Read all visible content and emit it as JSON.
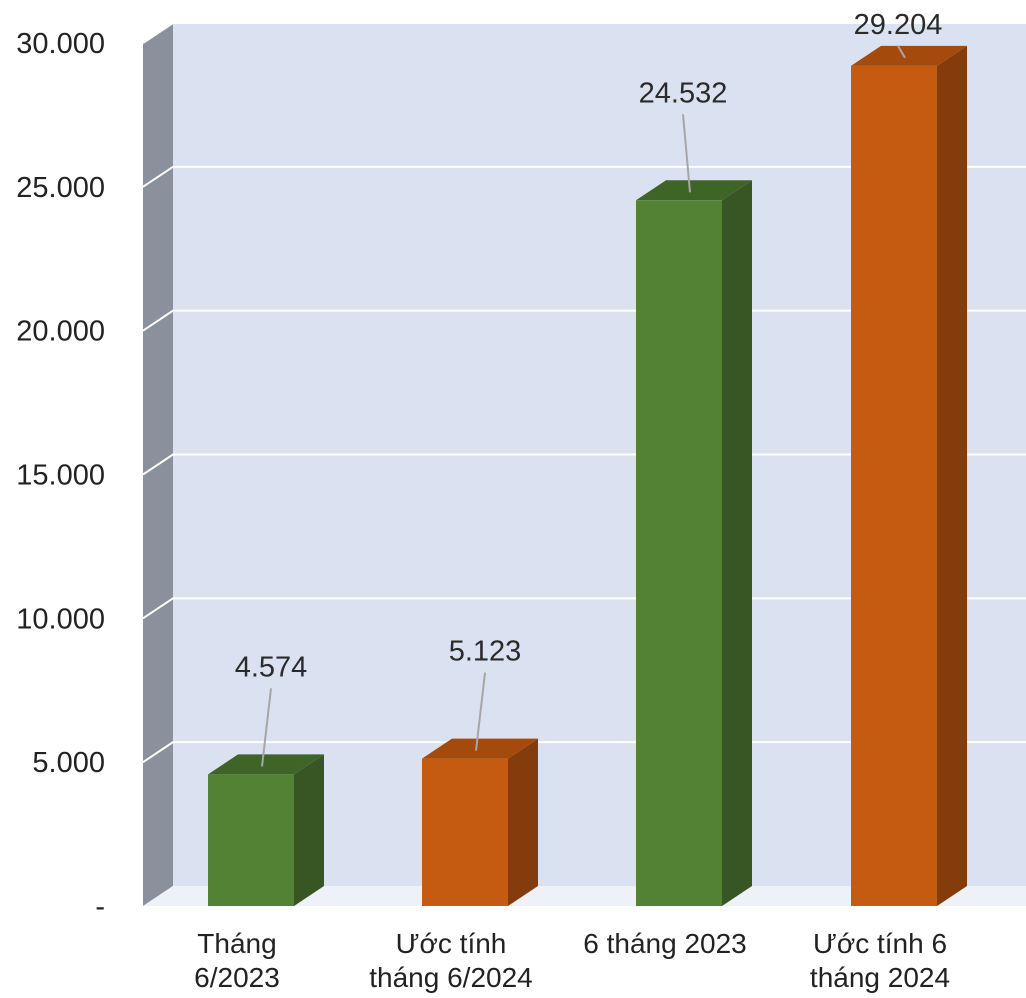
{
  "chart_data": {
    "type": "bar",
    "categories": [
      [
        "Tháng",
        "6/2023"
      ],
      [
        "Ước tính",
        "tháng 6/2024"
      ],
      [
        "6 tháng 2023"
      ],
      [
        "Ước tính 6",
        "tháng 2024"
      ]
    ],
    "values": [
      4574,
      5123,
      24532,
      29204
    ],
    "value_labels": [
      "4.574",
      "5.123",
      "24.532",
      "29.204"
    ],
    "ytick_labels": [
      "-",
      "5.000",
      "10.000",
      "15.000",
      "20.000",
      "25.000",
      "30.000"
    ],
    "ylim": [
      0,
      30000
    ],
    "grid": true,
    "title": "",
    "xlabel": "",
    "ylabel": "",
    "colors": {
      "green_front": "#548235",
      "green_side": "#375623",
      "green_top": "#3f6428",
      "orange_front": "#c55a11",
      "orange_side": "#843c0c",
      "orange_top": "#a44a0d",
      "wall": "#dae1f1",
      "side_wall": "#8a919c",
      "gridline": "#ffffff",
      "leader": "#a6a6a6"
    },
    "bar_color_keys": [
      "green",
      "orange",
      "green",
      "orange"
    ]
  }
}
